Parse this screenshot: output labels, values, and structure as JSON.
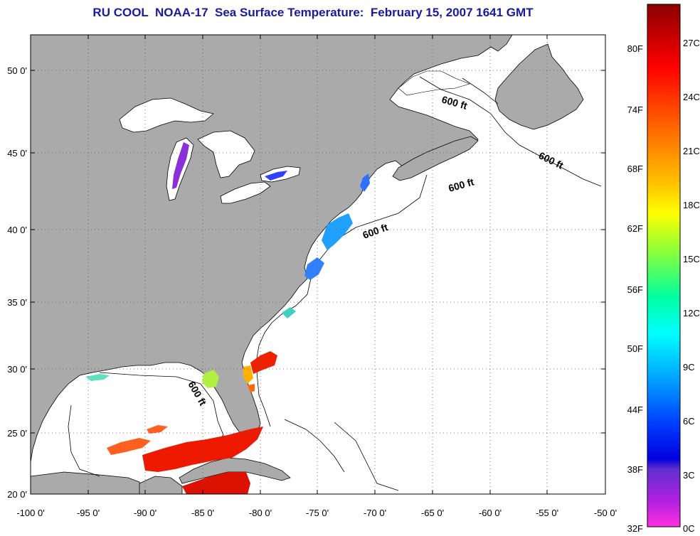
{
  "title": "RU COOL  NOAA-17  Sea Surface Temperature:  February 15, 2007 1641 GMT",
  "colors": {
    "land": "#aaaaaa",
    "ocean": "#ffffff",
    "title": "#1a1aa0"
  },
  "lat_labels": [
    "50 0'",
    "45 0'",
    "40 0'",
    "35 0'",
    "30 0'",
    "25 0'",
    "20 0'"
  ],
  "lon_labels": [
    "-100 0'",
    "-95 0'",
    "-90 0'",
    "-85 0'",
    "-80 0'",
    "-75 0'",
    "-70 0'",
    "-65 0'",
    "-60 0'",
    "-55 0'",
    "-50 0'"
  ],
  "contour_label": "600 ft",
  "colorbar": {
    "f_labels": [
      "80F",
      "74F",
      "68F",
      "62F",
      "56F",
      "50F",
      "44F",
      "38F",
      "32F"
    ],
    "c_labels": [
      "27C",
      "24C",
      "21C",
      "18C",
      "15C",
      "12C",
      "9C",
      "6C",
      "3C",
      "0C"
    ]
  }
}
